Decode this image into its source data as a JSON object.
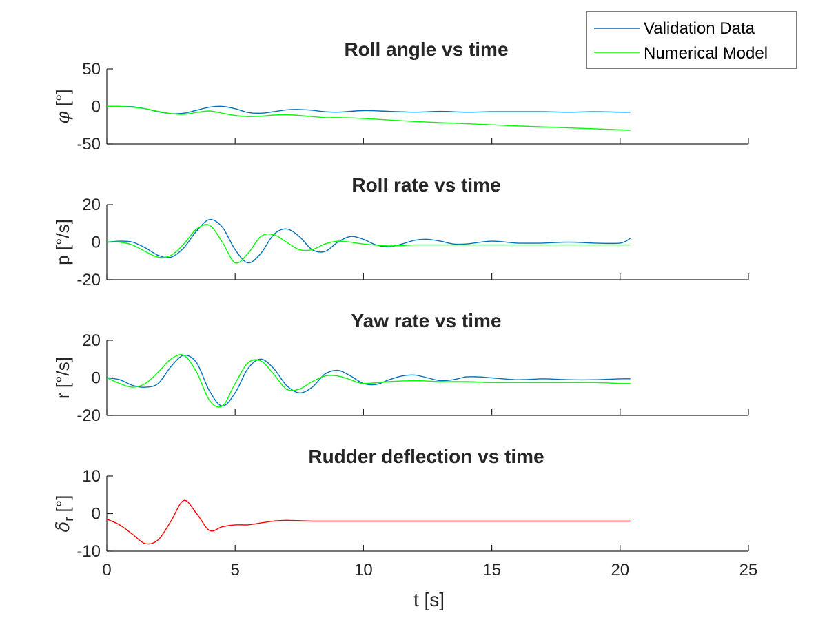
{
  "chart_data": [
    {
      "type": "line",
      "title": "Roll angle vs time",
      "ylabel": "φ [°]",
      "ylim": [
        -50,
        50
      ],
      "yticks": [
        50,
        0,
        -50
      ],
      "xlim": [
        0,
        25
      ],
      "xticks": [
        0,
        5,
        10,
        15,
        20,
        25
      ],
      "show_xtick_labels": false,
      "series": [
        {
          "name": "Validation Data",
          "color": "#0072BD",
          "x": [
            0,
            0.5,
            1,
            1.5,
            2,
            2.5,
            3,
            3.5,
            4,
            4.5,
            5,
            5.5,
            6,
            6.5,
            7,
            7.5,
            8,
            8.5,
            9,
            10,
            11,
            12,
            13,
            14,
            15,
            16,
            17,
            18,
            19,
            20,
            20.4
          ],
          "y": [
            0,
            0,
            -0.5,
            -3,
            -7,
            -9.5,
            -9,
            -5,
            -1,
            0,
            -3,
            -8,
            -9,
            -7,
            -4.5,
            -4,
            -5,
            -7,
            -7.5,
            -5.5,
            -6.5,
            -7.5,
            -6.5,
            -7.5,
            -7,
            -7,
            -7,
            -7.5,
            -7,
            -7.5,
            -7.5
          ]
        },
        {
          "name": "Numerical Model",
          "color": "#00FF00",
          "x": [
            0,
            0.5,
            1,
            1.5,
            2,
            2.5,
            3,
            3.5,
            4,
            4.5,
            5,
            5.5,
            6,
            6.5,
            7,
            7.5,
            8,
            8.5,
            9,
            10,
            12,
            14,
            16,
            18,
            20,
            20.4
          ],
          "y": [
            0,
            0,
            -1,
            -3,
            -6.5,
            -9.5,
            -10.5,
            -8,
            -6,
            -9,
            -12,
            -13.5,
            -13,
            -11.5,
            -11,
            -12,
            -13.5,
            -15,
            -15,
            -16,
            -20,
            -23,
            -26,
            -28.5,
            -31,
            -32
          ]
        }
      ]
    },
    {
      "type": "line",
      "title": "Roll rate vs time",
      "ylabel": "p [°/s]",
      "ylim": [
        -20,
        20
      ],
      "yticks": [
        20,
        0,
        -20
      ],
      "xlim": [
        0,
        25
      ],
      "xticks": [
        0,
        5,
        10,
        15,
        20,
        25
      ],
      "show_xtick_labels": false,
      "series": [
        {
          "name": "Validation Data",
          "color": "#0072BD",
          "x": [
            0,
            0.5,
            1,
            1.5,
            2,
            2.5,
            3,
            3.5,
            4,
            4.5,
            5,
            5.5,
            6,
            6.5,
            7,
            7.5,
            8,
            8.5,
            9,
            9.5,
            10,
            10.5,
            11,
            11.5,
            12,
            12.5,
            13,
            13.5,
            14,
            15,
            16,
            17,
            18,
            19,
            20,
            20.4
          ],
          "y": [
            0,
            0.5,
            0,
            -3,
            -7,
            -8,
            -3,
            6,
            12,
            8,
            -4,
            -11,
            -6,
            4,
            7,
            3,
            -4,
            -5,
            0,
            3,
            1.5,
            -1.5,
            -2.5,
            -1,
            1,
            1.5,
            0.5,
            -1,
            -1,
            0.5,
            -0.5,
            -0.5,
            0,
            -0.5,
            -0.5,
            2
          ]
        },
        {
          "name": "Numerical Model",
          "color": "#00FF00",
          "x": [
            0,
            0.5,
            1,
            1.5,
            2,
            2.5,
            3,
            3.5,
            4,
            4.5,
            5,
            5.5,
            6,
            6.5,
            7,
            7.5,
            8,
            8.5,
            9,
            9.5,
            10,
            11,
            12,
            13,
            14,
            15,
            16,
            17,
            18,
            19,
            20,
            20.4
          ],
          "y": [
            0,
            0,
            -1.5,
            -5,
            -8,
            -7,
            -1,
            7,
            9,
            0,
            -11,
            -6,
            3,
            4,
            0,
            -4,
            -4,
            -1,
            0.5,
            0,
            -1,
            -2,
            -1.5,
            -1.5,
            -1.5,
            -1.5,
            -1.5,
            -1.5,
            -1.5,
            -1.5,
            -1.5,
            -1.5
          ]
        }
      ]
    },
    {
      "type": "line",
      "title": "Yaw rate vs time",
      "ylabel": "r [°/s]",
      "ylim": [
        -20,
        20
      ],
      "yticks": [
        20,
        0,
        -20
      ],
      "xlim": [
        0,
        25
      ],
      "xticks": [
        0,
        5,
        10,
        15,
        20,
        25
      ],
      "show_xtick_labels": false,
      "series": [
        {
          "name": "Validation Data",
          "color": "#0072BD",
          "x": [
            0,
            0.5,
            1,
            1.5,
            2,
            2.5,
            3,
            3.5,
            4,
            4.5,
            5,
            5.5,
            6,
            6.5,
            7,
            7.5,
            8,
            8.5,
            9,
            9.5,
            10,
            10.5,
            11,
            11.5,
            12,
            12.5,
            13,
            13.5,
            14,
            14.5,
            15,
            16,
            17,
            18,
            19,
            20,
            20.4
          ],
          "y": [
            0,
            -1,
            -4,
            -5,
            -3,
            6,
            12,
            8,
            -7,
            -15,
            -8,
            5,
            10,
            5,
            -4,
            -8,
            -5,
            2,
            4,
            1,
            -3,
            -3.5,
            -1,
            1,
            1.5,
            0,
            -1.5,
            -1,
            0.5,
            0.5,
            0,
            -1,
            -0.5,
            -1,
            -1,
            -0.5,
            -0.5
          ]
        },
        {
          "name": "Numerical Model",
          "color": "#00FF00",
          "x": [
            0,
            0.5,
            1,
            1.5,
            2,
            2.5,
            3,
            3.5,
            4,
            4.5,
            5,
            5.5,
            6,
            6.5,
            7,
            7.5,
            8,
            8.5,
            9,
            9.5,
            10,
            11,
            12,
            13,
            14,
            15,
            16,
            17,
            18,
            19,
            20,
            20.4
          ],
          "y": [
            0,
            -3,
            -5,
            -3,
            3,
            10,
            12,
            3,
            -12,
            -15,
            -3,
            8,
            9,
            2,
            -6,
            -6,
            -2,
            1,
            1,
            -1,
            -3,
            -2,
            -1.5,
            -2,
            -2,
            -2.5,
            -2.5,
            -2.5,
            -2.5,
            -2.5,
            -3,
            -3
          ]
        }
      ]
    },
    {
      "type": "line",
      "title": "Rudder deflection vs time",
      "ylabel": "δr [°]",
      "ylim": [
        -10,
        10
      ],
      "yticks": [
        10,
        0,
        -10
      ],
      "xlim": [
        0,
        25
      ],
      "xticks": [
        0,
        5,
        10,
        15,
        20,
        25
      ],
      "show_xtick_labels": true,
      "xlabel": "t [s]",
      "series": [
        {
          "name": "Rudder deflection",
          "color": "#FF0000",
          "x": [
            0,
            0.5,
            1,
            1.5,
            2,
            2.5,
            3,
            3.5,
            4,
            4.5,
            5,
            5.5,
            6,
            6.5,
            7,
            8,
            9,
            10,
            12,
            14,
            16,
            18,
            20,
            20.4
          ],
          "y": [
            -1.5,
            -3,
            -5.5,
            -8,
            -7,
            -2,
            3.5,
            0,
            -4.5,
            -3.5,
            -3,
            -3,
            -2.5,
            -2,
            -1.8,
            -2,
            -2,
            -2,
            -2,
            -2,
            -2,
            -2,
            -2,
            -2
          ]
        }
      ]
    }
  ],
  "legend": {
    "position": "top-right",
    "entries": [
      {
        "label": "Validation Data",
        "color": "#0072BD"
      },
      {
        "label": "Numerical Model",
        "color": "#00FF00"
      }
    ]
  }
}
